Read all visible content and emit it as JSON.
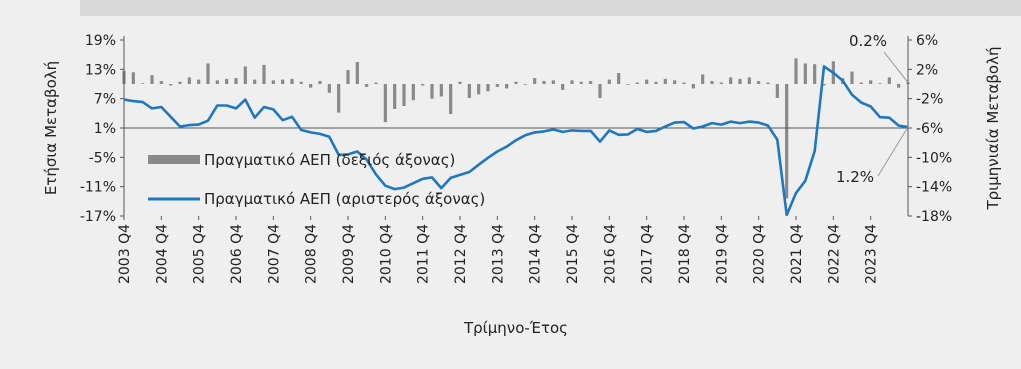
{
  "chart_data": {
    "type": "bar+line",
    "xlabel": "Τρίμηνο-Έτος",
    "ylabel_left": "Ετήσια Μεταβολή",
    "ylabel_right": "Τριμηνιαία Μεταβολή",
    "left_axis": {
      "ticks": [
        "19%",
        "13%",
        "7%",
        "1%",
        "-5%",
        "-11%",
        "-17%"
      ],
      "range": [
        -17,
        19
      ]
    },
    "right_axis": {
      "ticks": [
        "6%",
        "2%",
        "-2%",
        "-6%",
        "-10%",
        "-14%",
        "-18%"
      ],
      "range": [
        -18,
        6
      ]
    },
    "x_tick_labels": [
      "2003 Q4",
      "2004 Q4",
      "2005 Q4",
      "2006 Q4",
      "2007 Q4",
      "2008 Q4",
      "2009 Q4",
      "2010 Q4",
      "2011 Q4",
      "2012 Q4",
      "2013 Q4",
      "2014 Q4",
      "2015 Q4",
      "2016 Q4",
      "2017 Q4",
      "2018 Q4",
      "2019 Q4",
      "2020 Q4",
      "2021 Q4",
      "2022 Q4",
      "2023 Q4"
    ],
    "x_start": "2003 Q4",
    "x_end": "2023 Q4",
    "series": [
      {
        "name": "Πραγματικό ΑΕΠ (δεξιός άξονας)",
        "type": "bar",
        "axis": "right",
        "color": "#8a8a8a",
        "values": [
          1.8,
          1.6,
          0.1,
          1.2,
          0.4,
          -0.2,
          0.3,
          0.9,
          0.6,
          2.8,
          0.5,
          0.7,
          0.8,
          2.4,
          0.6,
          2.6,
          0.5,
          0.6,
          0.7,
          0.3,
          -0.5,
          0.4,
          -1.2,
          -3.9,
          1.9,
          3.0,
          -0.4,
          0.2,
          -5.2,
          -3.4,
          -3.0,
          -2.2,
          -0.2,
          -2.0,
          -1.7,
          -4.1,
          0.3,
          -1.9,
          -1.4,
          -1.0,
          -0.4,
          -0.6,
          0.3,
          -0.1,
          0.8,
          0.4,
          0.5,
          -0.8,
          0.5,
          0.3,
          0.4,
          -1.9,
          0.6,
          1.5,
          -0.1,
          0.2,
          0.6,
          0.3,
          0.7,
          0.5,
          0.2,
          -0.6,
          1.3,
          0.4,
          0.2,
          0.9,
          0.7,
          0.9,
          0.4,
          0.2,
          -1.9,
          -15.6,
          3.5,
          2.8,
          2.7,
          -0.2,
          3.1,
          0.8,
          1.7,
          0.2,
          0.5,
          0.1,
          0.9,
          -0.5,
          0.2
        ],
        "annotation": "0.2%"
      },
      {
        "name": "Πραγματικό ΑΕΠ (αριστερός άξονας)",
        "type": "line",
        "axis": "left",
        "color": "#1f77c2",
        "values": [
          6.8,
          6.5,
          6.3,
          5.0,
          5.3,
          3.3,
          1.3,
          1.6,
          1.7,
          2.5,
          5.6,
          5.6,
          5.0,
          6.8,
          3.1,
          5.3,
          4.8,
          2.6,
          3.3,
          0.6,
          0.1,
          -0.2,
          -0.8,
          -4.5,
          -4.4,
          -3.8,
          -5.5,
          -8.5,
          -10.8,
          -11.5,
          -11.2,
          -10.3,
          -9.4,
          -9.1,
          -11.3,
          -9.2,
          -8.6,
          -8.0,
          -6.5,
          -5.1,
          -3.8,
          -2.8,
          -1.5,
          -0.5,
          0.1,
          0.3,
          0.7,
          0.2,
          0.5,
          0.4,
          0.4,
          -1.8,
          0.5,
          -0.4,
          -0.3,
          0.8,
          0.2,
          0.4,
          1.3,
          2.1,
          2.2,
          0.9,
          1.3,
          2.0,
          1.7,
          2.3,
          2.0,
          2.3,
          2.1,
          1.5,
          -1.4,
          -16.8,
          -12.3,
          -9.8,
          -3.7,
          13.6,
          12.3,
          10.7,
          7.8,
          6.2,
          5.4,
          3.2,
          3.1,
          1.5,
          1.2
        ],
        "annotation": "1.2%"
      }
    ],
    "grid": false,
    "legend_position": "center-left"
  }
}
